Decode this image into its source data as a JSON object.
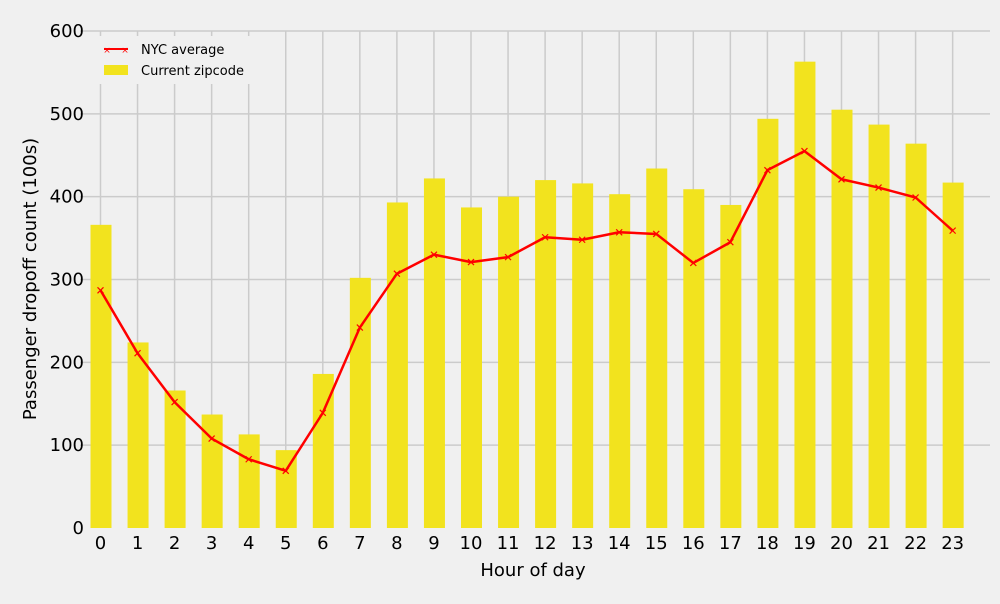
{
  "chart_data": {
    "type": "bar",
    "xlabel": "Hour of day",
    "ylabel": "Passenger dropoff count (100s)",
    "categories": [
      "0",
      "1",
      "2",
      "3",
      "4",
      "5",
      "6",
      "7",
      "8",
      "9",
      "10",
      "11",
      "12",
      "13",
      "14",
      "15",
      "16",
      "17",
      "18",
      "19",
      "20",
      "21",
      "22",
      "23"
    ],
    "ylim": [
      0,
      600
    ],
    "yticks": [
      0,
      100,
      200,
      300,
      400,
      500,
      600
    ],
    "grid": true,
    "legend_position": "top-left",
    "series": [
      {
        "name": "Current zipcode",
        "type": "bar",
        "color": "#f2e31e",
        "values": [
          366,
          224,
          166,
          137,
          113,
          94,
          186,
          302,
          393,
          422,
          387,
          400,
          420,
          416,
          403,
          434,
          409,
          390,
          494,
          563,
          505,
          487,
          464,
          417
        ]
      },
      {
        "name": "NYC average",
        "type": "line",
        "color": "#ff0000",
        "marker": "x",
        "values": [
          287,
          211,
          152,
          108,
          83,
          69,
          139,
          242,
          307,
          330,
          321,
          327,
          351,
          348,
          357,
          355,
          320,
          345,
          432,
          455,
          421,
          411,
          399,
          359
        ]
      }
    ]
  }
}
